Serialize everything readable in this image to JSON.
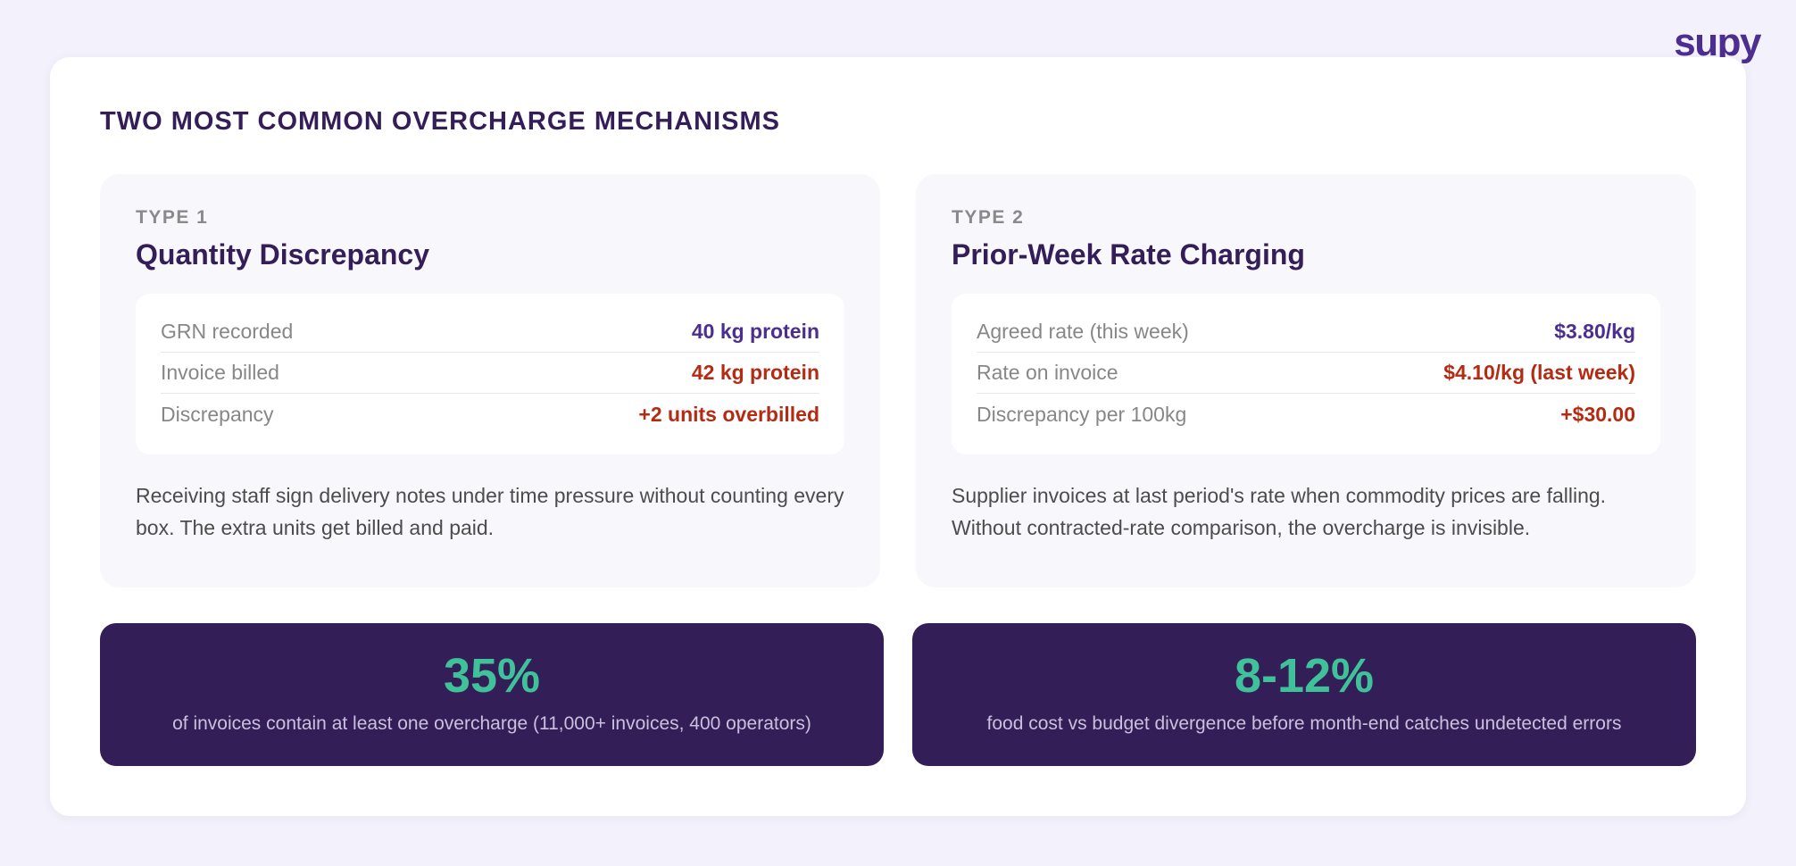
{
  "brand": {
    "logo_text": "supy",
    "color": "#4b2e8f"
  },
  "title": "TWO MOST COMMON OVERCHARGE MECHANISMS",
  "types": [
    {
      "label": "TYPE 1",
      "title": "Quantity Discrepancy",
      "rows": [
        {
          "label": "GRN recorded",
          "value": "40 kg protein",
          "tone": "purple"
        },
        {
          "label": "Invoice billed",
          "value": "42 kg protein",
          "tone": "red"
        },
        {
          "label": "Discrepancy",
          "value": "+2 units overbilled",
          "tone": "red"
        }
      ],
      "description": "Receiving staff sign delivery notes under time pressure without counting every box. The extra units get billed and paid."
    },
    {
      "label": "TYPE 2",
      "title": "Prior-Week Rate Charging",
      "rows": [
        {
          "label": "Agreed rate (this week)",
          "value": "$3.80/kg",
          "tone": "purple"
        },
        {
          "label": "Rate on invoice",
          "value": "$4.10/kg (last week)",
          "tone": "red"
        },
        {
          "label": "Discrepancy per 100kg",
          "value": "+$30.00",
          "tone": "red"
        }
      ],
      "description": "Supplier invoices at last period's rate when commodity prices are falling. Without contracted-rate comparison, the overcharge is invisible."
    }
  ],
  "stats": [
    {
      "value": "35%",
      "caption": "of invoices contain at least one overcharge (11,000+ invoices, 400 operators)"
    },
    {
      "value": "8-12%",
      "caption": "food cost vs budget divergence before month-end catches undetected errors"
    }
  ],
  "colors": {
    "background": "#f3f1fb",
    "dark_purple": "#341e57",
    "accent_green": "#3fc19a",
    "value_purple": "#4b2e8f",
    "value_red": "#b52a12"
  }
}
